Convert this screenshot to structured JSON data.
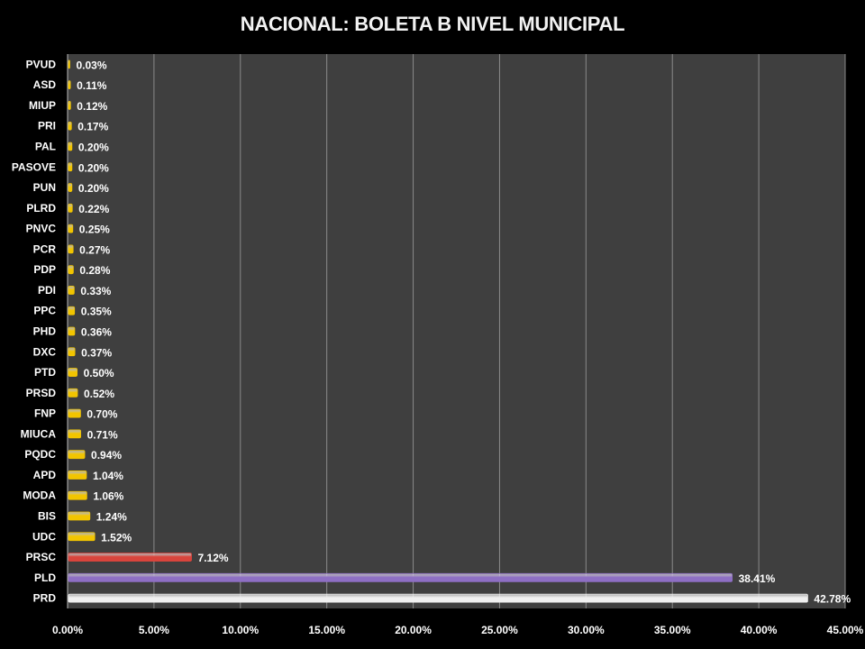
{
  "chart_data": {
    "type": "bar",
    "orientation": "horizontal",
    "title": "NACIONAL: BOLETA B NIVEL MUNICIPAL",
    "xlabel": "",
    "ylabel": "",
    "xlim": [
      0,
      45
    ],
    "x_ticks": [
      "0.00%",
      "5.00%",
      "10.00%",
      "15.00%",
      "20.00%",
      "25.00%",
      "30.00%",
      "35.00%",
      "40.00%",
      "45.00%"
    ],
    "grid": true,
    "categories": [
      "PRD",
      "PLD",
      "PRSC",
      "UDC",
      "BIS",
      "MODA",
      "APD",
      "PQDC",
      "MIUCA",
      "FNP",
      "PRSD",
      "PTD",
      "DXC",
      "PHD",
      "PPC",
      "PDI",
      "PDP",
      "PCR",
      "PNVC",
      "PLRD",
      "PUN",
      "PASOVE",
      "PAL",
      "PRI",
      "MIUP",
      "ASD",
      "PVUD"
    ],
    "values": [
      42.78,
      38.41,
      7.12,
      1.52,
      1.24,
      1.06,
      1.04,
      0.94,
      0.71,
      0.7,
      0.52,
      0.5,
      0.37,
      0.36,
      0.35,
      0.33,
      0.28,
      0.27,
      0.25,
      0.22,
      0.2,
      0.2,
      0.2,
      0.17,
      0.12,
      0.11,
      0.03
    ],
    "labels": [
      "42.78%",
      "38.41%",
      "7.12%",
      "1.52%",
      "1.24%",
      "1.06%",
      "1.04%",
      "0.94%",
      "0.71%",
      "0.70%",
      "0.52%",
      "0.50%",
      "0.37%",
      "0.36%",
      "0.35%",
      "0.33%",
      "0.28%",
      "0.27%",
      "0.25%",
      "0.22%",
      "0.20%",
      "0.20%",
      "0.20%",
      "0.17%",
      "0.12%",
      "0.11%",
      "0.03%"
    ],
    "colors": {
      "PRD": "#f0f0f0",
      "PLD": "#8e6fc4",
      "PRSC": "#d9443c",
      "default": "#f2c500",
      "background": "#000000",
      "plot_background": "#3f3f3f",
      "gridline": "#8a8a8a"
    }
  }
}
